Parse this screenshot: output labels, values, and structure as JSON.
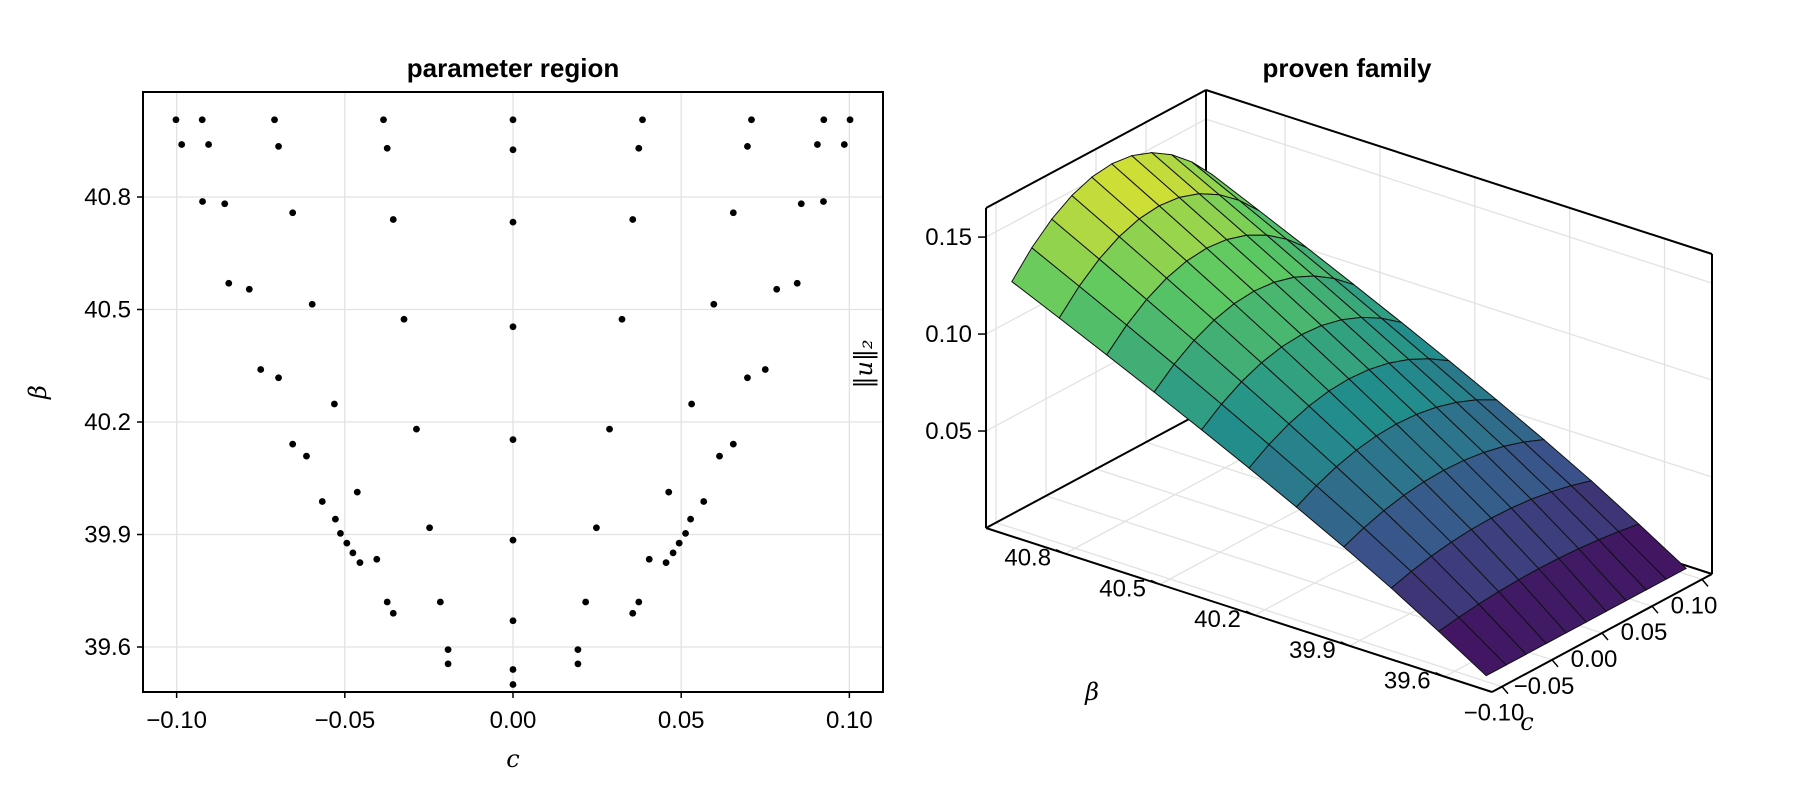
{
  "chart_data": [
    {
      "type": "scatter",
      "title": "parameter region",
      "xlabel": "c",
      "ylabel": "β",
      "xlim": [
        -0.11,
        0.11
      ],
      "ylim": [
        39.48,
        41.08
      ],
      "xticks": [
        "−0.10",
        "−0.05",
        "0.00",
        "0.05",
        "0.10"
      ],
      "yticks": [
        "39.6",
        "39.9",
        "40.2",
        "40.5",
        "40.8"
      ],
      "grid": true,
      "points": [
        [
          0,
          39.5
        ],
        [
          0,
          39.54
        ],
        [
          0.0193,
          39.555
        ],
        [
          0.0193,
          39.593
        ],
        [
          0.0216,
          39.72
        ],
        [
          0.0356,
          39.69
        ],
        [
          0.0374,
          39.72
        ],
        [
          0.0405,
          39.834
        ],
        [
          0.0455,
          39.825
        ],
        [
          0.0476,
          39.851
        ],
        [
          0.0494,
          39.877
        ],
        [
          0.0513,
          39.903
        ],
        [
          0.0528,
          39.941
        ],
        [
          0.0567,
          39.988
        ],
        [
          0.0463,
          40.013
        ],
        [
          0.0248,
          39.918
        ],
        [
          0,
          39.885
        ],
        [
          0,
          39.67
        ],
        [
          0,
          40.153
        ],
        [
          0.0287,
          40.181
        ],
        [
          0.0531,
          40.248
        ],
        [
          0.0614,
          40.109
        ],
        [
          0.0655,
          40.141
        ],
        [
          0.0697,
          40.318
        ],
        [
          0.075,
          40.34
        ],
        [
          0,
          40.454
        ],
        [
          0.0597,
          40.514
        ],
        [
          0.0324,
          40.474
        ],
        [
          0.0784,
          40.554
        ],
        [
          0.0845,
          40.57
        ],
        [
          0.0356,
          40.74
        ],
        [
          0,
          40.733
        ],
        [
          0.0655,
          40.758
        ],
        [
          0.0857,
          40.782
        ],
        [
          0.0923,
          40.788
        ],
        [
          0.0374,
          40.93
        ],
        [
          0.0385,
          41.006
        ],
        [
          0,
          40.926
        ],
        [
          0,
          41.006
        ],
        [
          0.0697,
          40.935
        ],
        [
          0.0709,
          41.006
        ],
        [
          0.0905,
          40.94
        ],
        [
          0.0924,
          41.006
        ],
        [
          0.0985,
          40.94
        ],
        [
          0.1002,
          41.006
        ],
        [
          -0.0193,
          39.555
        ],
        [
          -0.0193,
          39.593
        ],
        [
          -0.0216,
          39.72
        ],
        [
          -0.0356,
          39.69
        ],
        [
          -0.0374,
          39.72
        ],
        [
          -0.0405,
          39.834
        ],
        [
          -0.0455,
          39.825
        ],
        [
          -0.0476,
          39.851
        ],
        [
          -0.0494,
          39.877
        ],
        [
          -0.0513,
          39.903
        ],
        [
          -0.0528,
          39.941
        ],
        [
          -0.0567,
          39.988
        ],
        [
          -0.0463,
          40.013
        ],
        [
          -0.0248,
          39.918
        ],
        [
          -0.0287,
          40.181
        ],
        [
          -0.0531,
          40.248
        ],
        [
          -0.0614,
          40.109
        ],
        [
          -0.0655,
          40.141
        ],
        [
          -0.0697,
          40.318
        ],
        [
          -0.075,
          40.34
        ],
        [
          -0.0597,
          40.514
        ],
        [
          -0.0324,
          40.474
        ],
        [
          -0.0784,
          40.554
        ],
        [
          -0.0845,
          40.57
        ],
        [
          -0.0356,
          40.74
        ],
        [
          -0.0655,
          40.758
        ],
        [
          -0.0857,
          40.782
        ],
        [
          -0.0923,
          40.788
        ],
        [
          -0.0374,
          40.93
        ],
        [
          -0.0385,
          41.006
        ],
        [
          -0.0697,
          40.935
        ],
        [
          -0.0709,
          41.006
        ],
        [
          -0.0905,
          40.94
        ],
        [
          -0.0924,
          41.006
        ],
        [
          -0.0985,
          40.94
        ],
        [
          -0.1002,
          41.006
        ]
      ],
      "marker_color": "#000000"
    },
    {
      "type": "surface3d",
      "title": "proven family",
      "xlabel": "c",
      "ylabel": "β",
      "zlabel": "‖u‖₂",
      "xticks": [
        "−0.10",
        "−0.05",
        "0.00",
        "0.05",
        "0.10"
      ],
      "yticks": [
        "39.6",
        "39.9",
        "40.2",
        "40.5",
        "40.8"
      ],
      "zticks": [
        "0.05",
        "0.10",
        "0.15"
      ],
      "zlim": [
        0.0,
        0.165
      ],
      "colormap": "viridis",
      "colormap_stops": [
        "#440154",
        "#3b528b",
        "#21918c",
        "#5ec962",
        "#fde725"
      ],
      "note_surface": "norm grows from ~0 at beta≈39.5 to ~0.16 at beta≈41.0; symmetric in c"
    }
  ]
}
